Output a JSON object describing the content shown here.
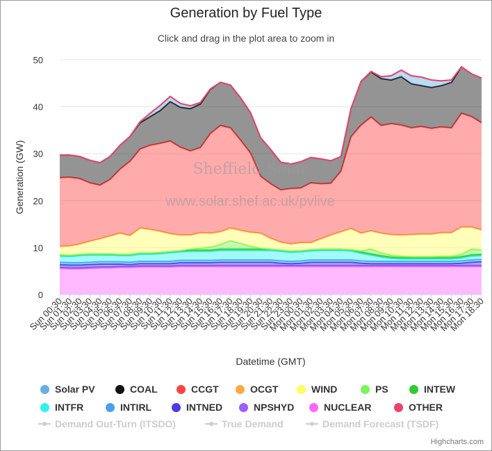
{
  "chart": {
    "title": "Generation by Fuel Type",
    "subtitle": "Click and drag in the plot area to zoom in",
    "credits": "Highcharts.com",
    "watermark": [
      "Sheffield Solar",
      "www.solar.shef.ac.uk/pvlive"
    ]
  },
  "chart_data": {
    "type": "area",
    "stacked": true,
    "title": "Generation by Fuel Type",
    "xlabel": "Datetime (GMT)",
    "ylabel": "Generation (GW)",
    "ylim": [
      0,
      50
    ],
    "yticks": [
      0,
      10,
      20,
      30,
      40,
      50
    ],
    "grid": true,
    "legend_position": "bottom",
    "xticks": [
      "Sun 00:30",
      "Sun 01:30",
      "Sun 02:30",
      "Sun 03:30",
      "Sun 04:30",
      "Sun 05:30",
      "Sun 06:30",
      "Sun 07:30",
      "Sun 08:30",
      "Sun 09:30",
      "Sun 10:30",
      "Sun 11:30",
      "Sun 12:30",
      "Sun 13:30",
      "Sun 14:30",
      "Sun 15:30",
      "Sun 16:30",
      "Sun 17:30",
      "Sun 18:30",
      "Sun 19:30",
      "Sun 20:30",
      "Sun 21:30",
      "Sun 22:30",
      "Sun 23:30",
      "Mon 00:30",
      "Mon 01:30",
      "Mon 02:30",
      "Mon 03:30",
      "Mon 04:30",
      "Mon 05:30",
      "Mon 06:30",
      "Mon 07:30",
      "Mon 08:30",
      "Mon 09:30",
      "Mon 10:30",
      "Mon 11:30",
      "Mon 12:30",
      "Mon 13:30",
      "Mon 14:30",
      "Mon 15:30",
      "Mon 16:30",
      "Mon 17:30",
      "Mon 18:30"
    ],
    "x_hours": [
      0.5,
      1.5,
      2.5,
      3.5,
      4.5,
      5.5,
      6.5,
      7.5,
      8.5,
      9.5,
      10.5,
      11.5,
      12.5,
      13.5,
      14.5,
      15.5,
      16.5,
      17.5,
      18.5,
      19.5,
      20.5,
      21.5,
      22.5,
      23.5,
      24.5,
      25.5,
      26.5,
      27.5,
      28.5,
      29.5,
      30.5,
      31.5,
      32.5,
      33.5,
      34.5,
      35.5,
      36.5,
      37.5,
      38.5,
      39.5,
      40.5,
      41.5,
      42.5
    ],
    "series": [
      {
        "name": "NUCLEAR",
        "color": "#ff66ff",
        "values": [
          5.6,
          5.5,
          5.5,
          5.6,
          5.7,
          5.7,
          5.8,
          5.8,
          5.9,
          5.9,
          5.9,
          5.9,
          6.0,
          6.0,
          6.0,
          6.0,
          6.0,
          6.0,
          6.0,
          6.0,
          6.0,
          6.0,
          6.0,
          6.0,
          6.0,
          6.0,
          6.0,
          6.0,
          6.0,
          6.0,
          6.0,
          6.0,
          6.0,
          6.0,
          6.0,
          6.0,
          6.0,
          6.0,
          6.0,
          6.0,
          6.0,
          6.0,
          6.0
        ]
      },
      {
        "name": "NPSHYD",
        "color": "#9c5ffa",
        "values": [
          0.2,
          0.2,
          0.2,
          0.2,
          0.2,
          0.2,
          0.2,
          0.2,
          0.2,
          0.2,
          0.2,
          0.2,
          0.2,
          0.2,
          0.2,
          0.2,
          0.2,
          0.2,
          0.2,
          0.2,
          0.2,
          0.2,
          0.2,
          0.2,
          0.2,
          0.2,
          0.2,
          0.2,
          0.2,
          0.2,
          0.2,
          0.2,
          0.2,
          0.2,
          0.2,
          0.2,
          0.2,
          0.2,
          0.2,
          0.2,
          0.2,
          0.2,
          0.2
        ]
      },
      {
        "name": "INTNED",
        "color": "#4a3de3",
        "values": [
          0.6,
          0.6,
          0.6,
          0.6,
          0.6,
          0.6,
          0.5,
          0.4,
          0.5,
          0.5,
          0.5,
          0.5,
          0.6,
          0.6,
          0.6,
          0.6,
          0.7,
          0.7,
          0.7,
          0.7,
          0.7,
          0.7,
          0.5,
          0.4,
          0.5,
          0.7,
          0.7,
          0.7,
          0.7,
          0.7,
          0.5,
          0.4,
          0.4,
          0.4,
          0.4,
          0.4,
          0.4,
          0.4,
          0.4,
          0.4,
          0.5,
          0.7,
          0.8
        ]
      },
      {
        "name": "INTIRL",
        "color": "#4b9ee8",
        "values": [
          0.5,
          0.5,
          0.5,
          0.5,
          0.5,
          0.5,
          0.5,
          0.5,
          0.5,
          0.5,
          0.5,
          0.5,
          0.5,
          0.5,
          0.5,
          0.5,
          0.5,
          0.5,
          0.5,
          0.5,
          0.5,
          0.5,
          0.5,
          0.5,
          0.5,
          0.5,
          0.5,
          0.5,
          0.5,
          0.5,
          0.5,
          0.5,
          0.5,
          0.5,
          0.5,
          0.5,
          0.5,
          0.5,
          0.5,
          0.5,
          0.5,
          0.5,
          0.5
        ]
      },
      {
        "name": "INTFR",
        "color": "#33f0f0",
        "values": [
          1.3,
          1.3,
          1.5,
          1.5,
          1.4,
          1.4,
          1.3,
          1.4,
          1.5,
          1.5,
          1.6,
          1.8,
          1.8,
          1.9,
          1.9,
          1.9,
          2.0,
          2.0,
          2.0,
          2.0,
          2.0,
          2.0,
          2.0,
          1.9,
          1.9,
          1.9,
          2.0,
          2.0,
          2.0,
          1.9,
          1.6,
          1.3,
          0.9,
          0.6,
          0.5,
          0.5,
          0.5,
          0.5,
          0.5,
          0.5,
          0.6,
          0.8,
          0.8
        ]
      },
      {
        "name": "INTEW",
        "color": "#2ecc2e",
        "values": [
          0.3,
          0.3,
          0.3,
          0.3,
          0.3,
          0.3,
          0.3,
          0.3,
          0.3,
          0.3,
          0.3,
          0.3,
          0.3,
          0.3,
          0.3,
          0.3,
          0.3,
          0.3,
          0.3,
          0.3,
          0.3,
          0.3,
          0.3,
          0.3,
          0.3,
          0.3,
          0.3,
          0.3,
          0.3,
          0.3,
          0.3,
          0.3,
          0.3,
          0.3,
          0.3,
          0.3,
          0.3,
          0.3,
          0.3,
          0.3,
          0.3,
          0.3,
          0.3
        ]
      },
      {
        "name": "PS",
        "color": "#7cf55a",
        "values": [
          0.0,
          0.0,
          0.0,
          0.0,
          0.0,
          0.0,
          0.0,
          0.0,
          0.0,
          0.0,
          0.0,
          0.0,
          0.0,
          0.2,
          0.4,
          0.6,
          1.0,
          1.8,
          1.2,
          0.6,
          0.2,
          0.0,
          0.0,
          0.0,
          0.0,
          0.0,
          0.0,
          0.0,
          0.0,
          0.0,
          0.2,
          1.0,
          0.6,
          0.4,
          0.3,
          0.2,
          0.2,
          0.2,
          0.3,
          0.3,
          0.5,
          1.2,
          0.9
        ]
      },
      {
        "name": "WIND",
        "color": "#ffff66",
        "values": [
          1.8,
          2.0,
          2.2,
          2.7,
          3.2,
          3.8,
          4.5,
          4.0,
          5.3,
          5.0,
          4.5,
          3.8,
          3.3,
          3.0,
          3.3,
          3.0,
          2.7,
          2.7,
          2.8,
          3.0,
          3.2,
          2.3,
          1.7,
          1.5,
          1.7,
          1.5,
          2.2,
          3.0,
          3.7,
          4.5,
          3.8,
          3.9,
          4.2,
          4.4,
          4.5,
          4.7,
          4.8,
          4.8,
          5.0,
          5.0,
          5.8,
          4.7,
          4.3
        ]
      },
      {
        "name": "OCGT",
        "color": "#ffaa44",
        "values": [
          0.0,
          0.0,
          0.0,
          0.0,
          0.0,
          0.0,
          0.0,
          0.0,
          0.0,
          0.0,
          0.0,
          0.0,
          0.0,
          0.0,
          0.0,
          0.0,
          0.0,
          0.0,
          0.0,
          0.0,
          0.0,
          0.0,
          0.0,
          0.0,
          0.0,
          0.0,
          0.0,
          0.0,
          0.0,
          0.0,
          0.0,
          0.0,
          0.0,
          0.0,
          0.0,
          0.0,
          0.0,
          0.0,
          0.0,
          0.0,
          0.0,
          0.0,
          0.0
        ]
      },
      {
        "name": "CCGT",
        "color": "#ff4444",
        "values": [
          14.6,
          14.6,
          13.9,
          12.4,
          11.4,
          12.0,
          13.6,
          15.8,
          16.8,
          17.9,
          18.7,
          19.7,
          18.7,
          17.9,
          18.1,
          21.2,
          22.6,
          21.3,
          19.2,
          16.8,
          12.1,
          11.6,
          11.1,
          11.8,
          11.6,
          12.7,
          11.7,
          11.0,
          12.9,
          19.5,
          23.0,
          24.2,
          22.9,
          23.6,
          23.4,
          22.7,
          22.9,
          22.5,
          22.5,
          22.3,
          24.2,
          23.5,
          22.8
        ]
      },
      {
        "name": "COAL",
        "color": "#111111",
        "values": [
          4.8,
          4.7,
          4.7,
          4.8,
          4.8,
          4.9,
          5.1,
          5.3,
          5.6,
          6.1,
          7.0,
          8.4,
          8.5,
          9.0,
          9.3,
          9.4,
          9.2,
          9.1,
          9.0,
          8.6,
          8.2,
          7.3,
          5.9,
          5.2,
          5.6,
          5.4,
          5.3,
          4.8,
          3.1,
          6.0,
          9.3,
          9.6,
          10.0,
          9.3,
          10.3,
          9.4,
          8.7,
          8.7,
          8.8,
          9.7,
          9.9,
          9.1,
          9.5
        ]
      },
      {
        "name": "Solar PV",
        "color": "#6aaee0",
        "values": [
          0.0,
          0.0,
          0.0,
          0.0,
          0.0,
          0.0,
          0.0,
          0.0,
          0.2,
          0.7,
          1.1,
          1.1,
          0.8,
          0.6,
          0.3,
          0.1,
          0.0,
          0.0,
          0.0,
          0.0,
          0.0,
          0.0,
          0.0,
          0.0,
          0.0,
          0.0,
          0.0,
          0.0,
          0.0,
          0.0,
          0.0,
          0.1,
          0.4,
          0.9,
          1.4,
          1.7,
          1.8,
          1.6,
          1.0,
          0.5,
          0.0,
          0.0,
          0.0
        ]
      },
      {
        "name": "OTHER",
        "color": "#e8446a",
        "values": [
          0.0,
          0.0,
          0.0,
          0.0,
          0.0,
          0.0,
          0.0,
          0.0,
          0.0,
          0.0,
          0.0,
          0.0,
          0.0,
          0.0,
          0.0,
          0.0,
          0.0,
          0.0,
          0.0,
          0.0,
          0.0,
          0.0,
          0.0,
          0.0,
          0.0,
          0.0,
          0.0,
          0.0,
          0.0,
          0.0,
          0.0,
          0.0,
          0.0,
          0.0,
          0.0,
          0.0,
          0.0,
          0.0,
          0.0,
          0.0,
          0.0,
          0.0,
          0.0
        ]
      }
    ],
    "lines": [
      {
        "name": "Demand Out-Turn (ITSDO)",
        "visible": false
      },
      {
        "name": "True Demand",
        "visible": false
      },
      {
        "name": "Demand Forecast (TSDF)",
        "visible": false
      }
    ]
  },
  "legend": {
    "items": [
      {
        "label": "Solar PV",
        "color": "#6aaee0"
      },
      {
        "label": "COAL",
        "color": "#111111"
      },
      {
        "label": "CCGT",
        "color": "#ff4444"
      },
      {
        "label": "OCGT",
        "color": "#ffaa44"
      },
      {
        "label": "WIND",
        "color": "#ffff66"
      },
      {
        "label": "PS",
        "color": "#7cf55a"
      },
      {
        "label": "INTEW",
        "color": "#2ecc2e"
      },
      {
        "label": "INTFR",
        "color": "#33f0f0"
      },
      {
        "label": "INTIRL",
        "color": "#4b9ee8"
      },
      {
        "label": "INTNED",
        "color": "#4a3de3"
      },
      {
        "label": "NPSHYD",
        "color": "#9c5ffa"
      },
      {
        "label": "NUCLEAR",
        "color": "#ff66ff"
      },
      {
        "label": "OTHER",
        "color": "#e8446a"
      },
      {
        "label": "Demand Out-Turn (ITSDO)",
        "hidden": true
      },
      {
        "label": "True Demand",
        "hidden": true
      },
      {
        "label": "Demand Forecast (TSDF)",
        "hidden": true
      }
    ]
  }
}
